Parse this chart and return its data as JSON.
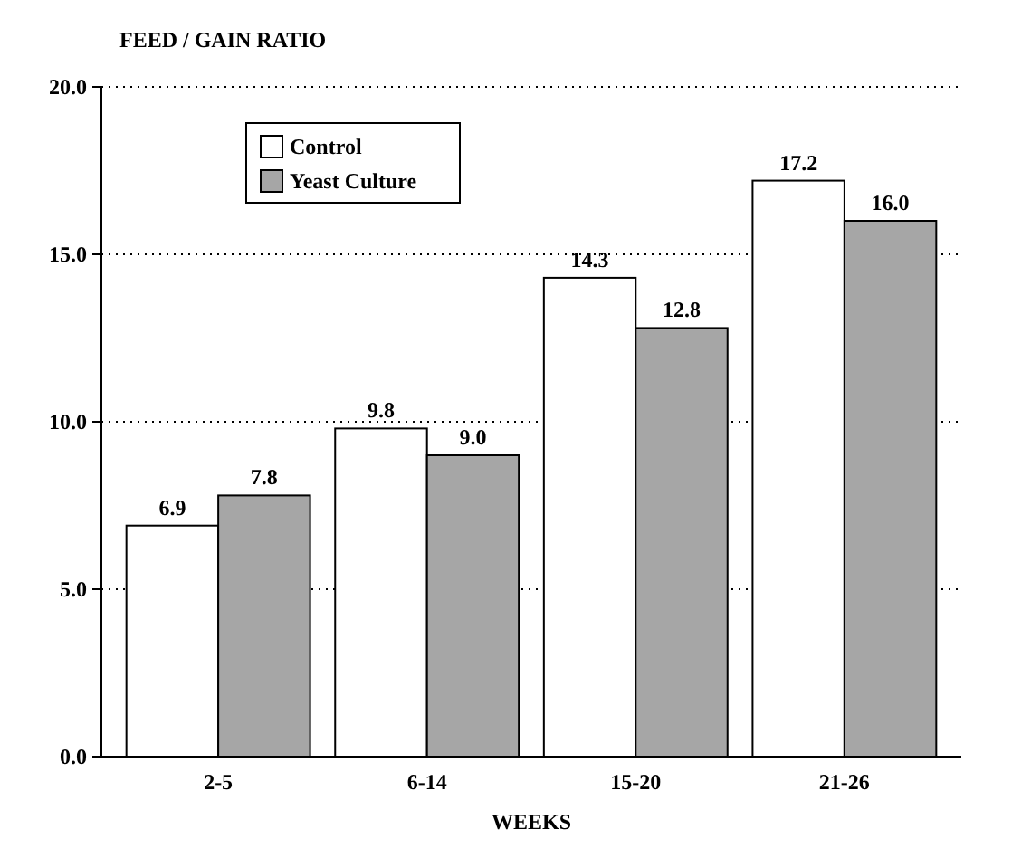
{
  "chart_data": {
    "type": "bar",
    "ylabel": "FEED / GAIN RATIO",
    "xlabel": "WEEKS",
    "categories": [
      "2-5",
      "6-14",
      "15-20",
      "21-26"
    ],
    "series": [
      {
        "name": "Control",
        "color": "#ffffff",
        "values": [
          6.9,
          9.8,
          14.3,
          17.2
        ],
        "value_labels": [
          "6.9",
          "9.8",
          "14.3",
          "17.2"
        ]
      },
      {
        "name": "Yeast Culture",
        "color": "#a6a6a6",
        "values": [
          7.8,
          9.0,
          12.8,
          16.0
        ],
        "value_labels": [
          "7.8",
          "9.0",
          "12.8",
          "16.0"
        ]
      }
    ],
    "ylim": [
      0,
      20
    ],
    "yticks": [
      {
        "value": 0,
        "label": "0.0"
      },
      {
        "value": 5,
        "label": "5.0"
      },
      {
        "value": 10,
        "label": "10.0"
      },
      {
        "value": 15,
        "label": "15.0"
      },
      {
        "value": 20,
        "label": "20.0"
      }
    ],
    "grid": "y",
    "legend": "top left"
  }
}
